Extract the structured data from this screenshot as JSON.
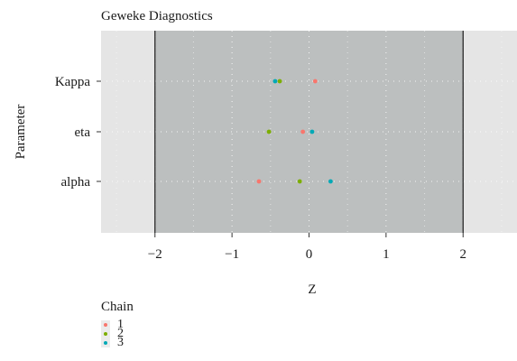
{
  "chart_data": {
    "type": "scatter",
    "title": "Geweke Diagnostics",
    "xlabel": "Z",
    "ylabel": "Parameter",
    "xlim": [
      -2.7,
      2.7
    ],
    "x_ticks": [
      "−2",
      "−1",
      "0",
      "1",
      "2"
    ],
    "x_tick_values": [
      -2,
      -1,
      0,
      1,
      2
    ],
    "categories": [
      "Kappa",
      "eta",
      "alpha"
    ],
    "shaded_band": [
      -2,
      2
    ],
    "grid": true,
    "legend_position": "bottom",
    "legend_title": "Chain",
    "series": [
      {
        "name": "1",
        "color": "#f8766d",
        "values": [
          {
            "y": "Kappa",
            "x": 0.08
          },
          {
            "y": "eta",
            "x": -0.08
          },
          {
            "y": "alpha",
            "x": -0.65
          }
        ]
      },
      {
        "name": "2",
        "color": "#7cae00",
        "values": [
          {
            "y": "Kappa",
            "x": -0.38
          },
          {
            "y": "eta",
            "x": -0.52
          },
          {
            "y": "alpha",
            "x": -0.12
          }
        ]
      },
      {
        "name": "3",
        "color": "#00a9b6",
        "values": [
          {
            "y": "Kappa",
            "x": -0.44
          },
          {
            "y": "eta",
            "x": 0.04
          },
          {
            "y": "alpha",
            "x": 0.28
          }
        ]
      }
    ]
  }
}
